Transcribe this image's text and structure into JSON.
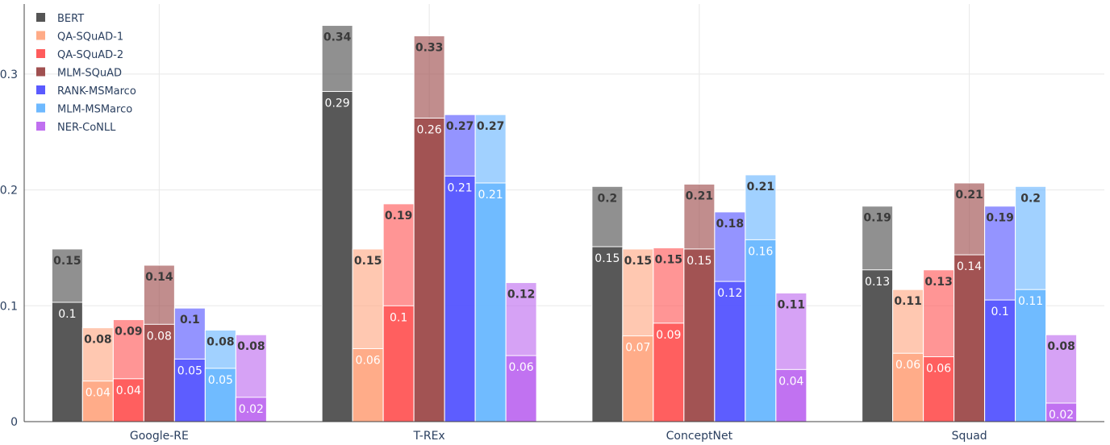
{
  "chart_data": {
    "type": "bar",
    "barmode": "grouped-overlay",
    "categories": [
      "Google-RE",
      "T-REx",
      "ConceptNet",
      "Squad"
    ],
    "ylim": [
      0,
      0.35
    ],
    "yticks": [
      0,
      0.1,
      0.2,
      0.3
    ],
    "ytick_labels": [
      "0",
      "0.1",
      "0.2",
      "0.3"
    ],
    "grid": true,
    "legend_position": "top-left",
    "series": [
      {
        "name": "BERT",
        "color": "#555555",
        "inner": [
          0.103,
          0.285,
          0.151,
          0.131
        ],
        "outer": [
          0.149,
          0.342,
          0.203,
          0.186
        ],
        "inner_labels": [
          "0.1",
          "0.29",
          "0.15",
          "0.13"
        ],
        "outer_labels": [
          "0.15",
          "0.34",
          "0.2",
          "0.19"
        ]
      },
      {
        "name": "QA-SQuAD-1",
        "color": "#ffab87",
        "inner": [
          0.035,
          0.063,
          0.074,
          0.059
        ],
        "outer": [
          0.081,
          0.149,
          0.149,
          0.114
        ],
        "inner_labels": [
          "0.04",
          "0.06",
          "0.07",
          "0.06"
        ],
        "outer_labels": [
          "0.08",
          "0.15",
          "0.15",
          "0.11"
        ]
      },
      {
        "name": "QA-SQuAD-2",
        "color": "#ff5c5c",
        "inner": [
          0.037,
          0.1,
          0.085,
          0.056
        ],
        "outer": [
          0.088,
          0.188,
          0.15,
          0.131
        ],
        "inner_labels": [
          "0.04",
          "0.1",
          "0.09",
          "0.06"
        ],
        "outer_labels": [
          "0.09",
          "0.19",
          "0.15",
          "0.13"
        ]
      },
      {
        "name": "MLM-SQuAD",
        "color": "#a05050",
        "inner": [
          0.084,
          0.262,
          0.149,
          0.144
        ],
        "outer": [
          0.135,
          0.333,
          0.205,
          0.206
        ],
        "inner_labels": [
          "0.08",
          "0.26",
          "0.15",
          "0.14"
        ],
        "outer_labels": [
          "0.14",
          "0.33",
          "0.21",
          "0.21"
        ]
      },
      {
        "name": "RANK-MSMarco",
        "color": "#5a5aff",
        "inner": [
          0.054,
          0.212,
          0.121,
          0.105
        ],
        "outer": [
          0.098,
          0.265,
          0.181,
          0.186
        ],
        "inner_labels": [
          "0.05",
          "0.21",
          "0.12",
          "0.1"
        ],
        "outer_labels": [
          "0.1",
          "0.27",
          "0.18",
          "0.19"
        ]
      },
      {
        "name": "MLM-MSMarco",
        "color": "#6eb9ff",
        "inner": [
          0.046,
          0.206,
          0.157,
          0.114
        ],
        "outer": [
          0.079,
          0.265,
          0.213,
          0.203
        ],
        "inner_labels": [
          "0.05",
          "0.21",
          "0.16",
          "0.11"
        ],
        "outer_labels": [
          "0.08",
          "0.27",
          "0.21",
          "0.2"
        ]
      },
      {
        "name": "NER-CoNLL",
        "color": "#c070f0",
        "inner": [
          0.021,
          0.057,
          0.045,
          0.016
        ],
        "outer": [
          0.075,
          0.12,
          0.111,
          0.075
        ],
        "inner_labels": [
          "0.02",
          "0.06",
          "0.04",
          "0.02"
        ],
        "outer_labels": [
          "0.08",
          "0.12",
          "0.11",
          "0.08"
        ]
      }
    ]
  }
}
